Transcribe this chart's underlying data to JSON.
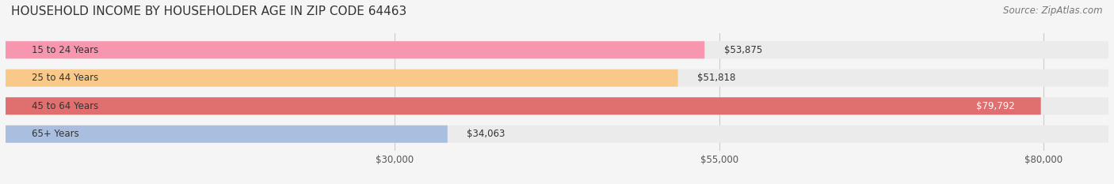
{
  "title": "HOUSEHOLD INCOME BY HOUSEHOLDER AGE IN ZIP CODE 64463",
  "source": "Source: ZipAtlas.com",
  "categories": [
    "15 to 24 Years",
    "25 to 44 Years",
    "45 to 64 Years",
    "65+ Years"
  ],
  "values": [
    53875,
    51818,
    79792,
    34063
  ],
  "bar_colors": [
    "#F896B0",
    "#F9C98A",
    "#E07070",
    "#AABFE0"
  ],
  "bg_bar_color": "#EBEBEB",
  "value_labels": [
    "$53,875",
    "$51,818",
    "$79,792",
    "$34,063"
  ],
  "xlim": [
    0,
    85000
  ],
  "xticks": [
    30000,
    55000,
    80000
  ],
  "xtick_labels": [
    "$30,000",
    "$55,000",
    "$80,000"
  ],
  "title_fontsize": 11,
  "source_fontsize": 8.5,
  "label_fontsize": 8.5,
  "value_fontsize": 8.5,
  "bar_height": 0.62,
  "background_color": "#F5F5F5"
}
